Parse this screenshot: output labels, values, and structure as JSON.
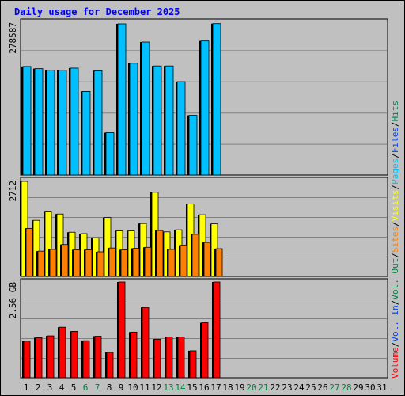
{
  "title": "Daily usage for December 2025",
  "colors": {
    "background": "#c0c0c0",
    "grid": "#808080",
    "hits": "#00805c",
    "files": "#0040ff",
    "pages": "#00c0ff",
    "visits": "#ffff00",
    "sites": "#ff8000",
    "volume": "#ff0000",
    "vol_in": "#0040ff",
    "vol_out": "#008040",
    "weekend_day": "#008040"
  },
  "chart_data": [
    {
      "type": "bar",
      "panel": "top",
      "ymax_label": "278587",
      "ylim": [
        0,
        278587
      ],
      "x": [
        1,
        2,
        3,
        4,
        5,
        6,
        7,
        8,
        9,
        10,
        11,
        12,
        13,
        14,
        15,
        16,
        17
      ],
      "series": [
        {
          "name": "Hits",
          "values": [
            200000,
            196000,
            193000,
            193000,
            197000,
            154000,
            192000,
            78000,
            278587,
            206000,
            245000,
            201000,
            201000,
            172000,
            110000,
            247000,
            279000
          ]
        },
        {
          "name": "Files",
          "values": [
            200000,
            196000,
            193000,
            193000,
            197000,
            154000,
            192000,
            78000,
            278587,
            206000,
            245000,
            201000,
            201000,
            172000,
            110000,
            247000,
            279000
          ]
        }
      ],
      "legend": [
        "Hits",
        "Files",
        "Pages"
      ]
    },
    {
      "type": "bar",
      "panel": "middle",
      "ymax_label": "2712",
      "ylim": [
        0,
        2712
      ],
      "x": [
        1,
        2,
        3,
        4,
        5,
        6,
        7,
        8,
        9,
        10,
        11,
        12,
        13,
        14,
        15,
        16,
        17
      ],
      "series": [
        {
          "name": "Visits",
          "values": [
            2712,
            1600,
            1840,
            1780,
            1260,
            1220,
            1100,
            1680,
            1300,
            1300,
            1510,
            2400,
            1270,
            1330,
            2070,
            1760,
            1500
          ]
        },
        {
          "name": "Sites",
          "values": [
            1370,
            720,
            770,
            910,
            760,
            760,
            700,
            810,
            760,
            800,
            830,
            1310,
            770,
            890,
            1200,
            970,
            790
          ]
        }
      ],
      "legend": [
        "Visits",
        "Sites",
        "Vol. Out"
      ]
    },
    {
      "type": "bar",
      "panel": "bottom",
      "ymax_label": "2.56 GB",
      "ylim": [
        0,
        2.56
      ],
      "yunit": "GB",
      "x": [
        1,
        2,
        3,
        4,
        5,
        6,
        7,
        8,
        9,
        10,
        11,
        12,
        13,
        14,
        15,
        16,
        17
      ],
      "series": [
        {
          "name": "Volume",
          "values": [
            0.98,
            1.07,
            1.12,
            1.35,
            1.24,
            0.99,
            1.11,
            0.68,
            2.56,
            1.22,
            1.88,
            1.03,
            1.09,
            1.09,
            0.72,
            1.47,
            2.56
          ]
        }
      ],
      "legend": [
        "Vol. In",
        "Volume"
      ]
    }
  ],
  "x_labels": [
    "1",
    "2",
    "3",
    "4",
    "5",
    "6",
    "7",
    "8",
    "9",
    "10",
    "11",
    "12",
    "13",
    "14",
    "15",
    "16",
    "17",
    "18",
    "19",
    "20",
    "21",
    "22",
    "23",
    "24",
    "25",
    "26",
    "27",
    "28",
    "29",
    "30",
    "31"
  ],
  "weekend_days": [
    6,
    7,
    13,
    14,
    20,
    21,
    27,
    28
  ],
  "right_legend": [
    {
      "text": "Volume",
      "color": "#ff0000"
    },
    {
      "text": "/",
      "color": "#000000"
    },
    {
      "text": "Vol. In",
      "color": "#0040ff"
    },
    {
      "text": "/",
      "color": "#000000"
    },
    {
      "text": "Vol. Out",
      "color": "#008040"
    },
    {
      "text": "/",
      "color": "#000000"
    },
    {
      "text": "Sites",
      "color": "#ff8000"
    },
    {
      "text": "/",
      "color": "#000000"
    },
    {
      "text": "Visits",
      "color": "#ffff00"
    },
    {
      "text": "/",
      "color": "#000000"
    },
    {
      "text": "Pages",
      "color": "#00c0ff"
    },
    {
      "text": "/",
      "color": "#000000"
    },
    {
      "text": "Files",
      "color": "#0040ff"
    },
    {
      "text": "/",
      "color": "#000000"
    },
    {
      "text": "Hits",
      "color": "#00805c"
    }
  ]
}
